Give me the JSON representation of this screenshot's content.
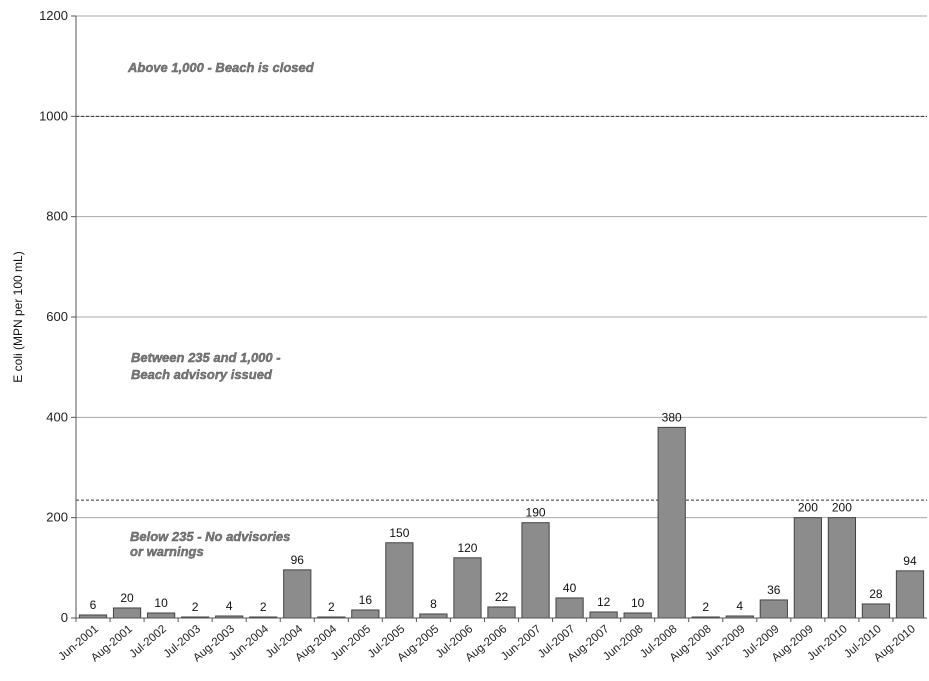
{
  "chart_data": {
    "type": "bar",
    "categories": [
      "Jun-2001",
      "Aug-2001",
      "Jul-2002",
      "Jul-2003",
      "Aug-2003",
      "Jun-2004",
      "Jul-2004",
      "Aug-2004",
      "Jun-2005",
      "Jul-2005",
      "Aug-2005",
      "Jul-2006",
      "Aug-2006",
      "Jun-2007",
      "Jul-2007",
      "Aug-2007",
      "Jun-2008",
      "Jul-2008",
      "Aug-2008",
      "Jun-2009",
      "Jul-2009",
      "Aug-2009",
      "Jun-2010",
      "Jul-2010",
      "Aug-2010"
    ],
    "values": [
      6,
      20,
      10,
      2,
      4,
      2,
      96,
      2,
      16,
      150,
      8,
      120,
      22,
      190,
      40,
      12,
      10,
      380,
      2,
      4,
      36,
      200,
      200,
      28,
      94
    ],
    "ylabel": "E coli (MPN per 100 mL)",
    "ylim": [
      0,
      1200
    ],
    "yticks": [
      0,
      200,
      400,
      600,
      800,
      1000,
      1200
    ],
    "grid": true,
    "bar_color": "#8c8c8c",
    "reference_lines": [
      {
        "value": 235,
        "style": "dashed"
      },
      {
        "value": 1000,
        "style": "dashed"
      }
    ],
    "annotations": {
      "closed": "Above 1,000 - Beach is closed",
      "advisory_line1": "Between 235 and 1,000 -",
      "advisory_line2": "Beach advisory issued",
      "below_line1": "Below 235 - No advisories",
      "below_line2": "or warnings"
    }
  }
}
